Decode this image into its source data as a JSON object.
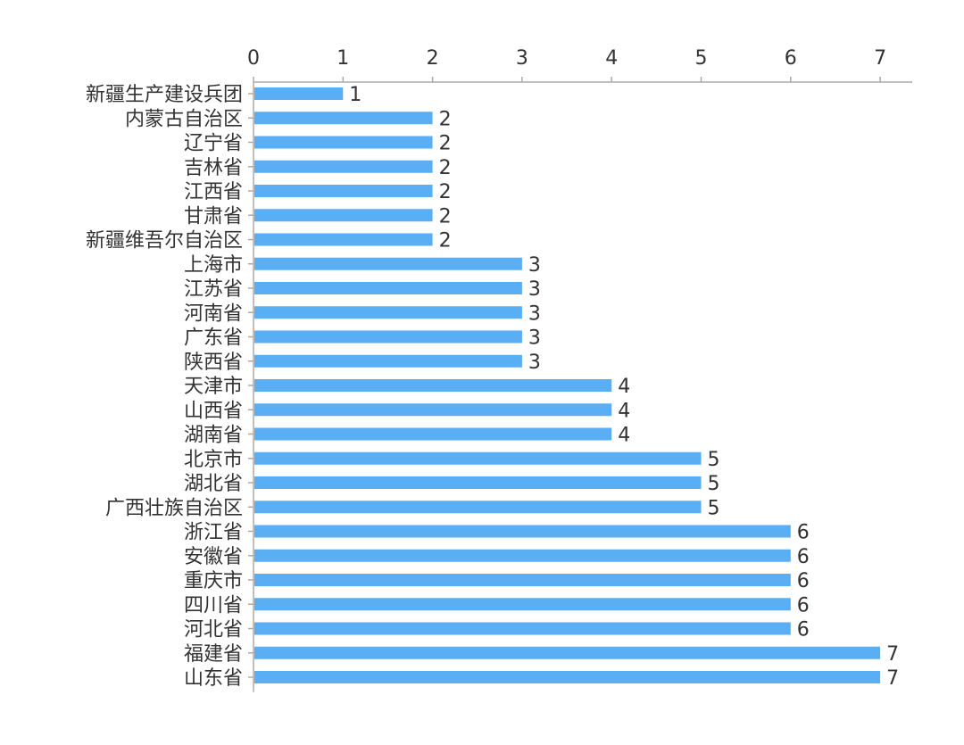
{
  "chart_data": {
    "type": "bar",
    "orientation": "horizontal",
    "x_axis_position": "top",
    "title": "",
    "xlabel": "",
    "ylabel": "",
    "xlim": [
      0,
      7
    ],
    "x_ticks": [
      "0",
      "1",
      "2",
      "3",
      "4",
      "5",
      "6",
      "7"
    ],
    "grid": false,
    "bar_color": "#5AAEF3",
    "axis_color": "#AAAAAA",
    "categories": [
      "新疆生产建设兵团",
      "内蒙古自治区",
      "辽宁省",
      "吉林省",
      "江西省",
      "甘肃省",
      "新疆维吾尔自治区",
      "上海市",
      "江苏省",
      "河南省",
      "广东省",
      "陕西省",
      "天津市",
      "山西省",
      "湖南省",
      "北京市",
      "湖北省",
      "广西壮族自治区",
      "浙江省",
      "安徽省",
      "重庆市",
      "四川省",
      "河北省",
      "福建省",
      "山东省"
    ],
    "values": [
      1,
      2,
      2,
      2,
      2,
      2,
      2,
      3,
      3,
      3,
      3,
      3,
      4,
      4,
      4,
      5,
      5,
      5,
      6,
      6,
      6,
      6,
      6,
      7,
      7
    ]
  }
}
